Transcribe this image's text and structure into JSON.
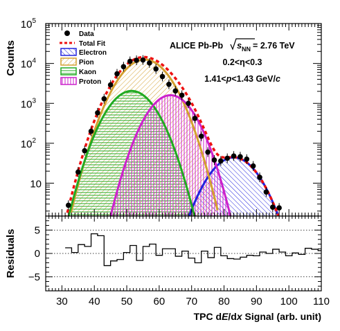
{
  "chart_data": [
    {
      "type": "line",
      "panel": "main",
      "ylabel": "Counts",
      "yscale": "log",
      "xlim": [
        25,
        110
      ],
      "ylim": [
        1.5,
        100000
      ],
      "y_tick_labels": [
        "10",
        "10",
        "10",
        "10",
        "10"
      ],
      "y_tick_exponents": [
        "5",
        "4",
        "3",
        "2",
        ""
      ],
      "annotation": {
        "title_prefix": "ALICE Pb-Pb",
        "sqrt": "s",
        "sqrt_sub": "NN",
        "title_suffix": "= 2.76 TeV",
        "line2_a": "0.2<",
        "line2_b": "η",
        "line2_c": "<0.3",
        "line3_a": "1.41<",
        "line3_b": "p",
        "line3_c": "<1.43 GeV/",
        "line3_d": "c"
      },
      "legend": [
        {
          "label": "Data",
          "style": "marker",
          "color": "#000000"
        },
        {
          "label": "Total Fit",
          "style": "dashed",
          "color": "#ee1111"
        },
        {
          "label": "Electron",
          "style": "hatch",
          "color": "#2222dd"
        },
        {
          "label": "Pion",
          "style": "hatch",
          "color": "#d4a030"
        },
        {
          "label": "Kaon",
          "style": "hatch",
          "color": "#22aa22"
        },
        {
          "label": "Proton",
          "style": "hatch",
          "color": "#cc22cc"
        }
      ],
      "components": [
        {
          "name": "Electron",
          "color": "#2222dd",
          "amp": 44,
          "mu": 83,
          "sigma": 5.3
        },
        {
          "name": "Pion",
          "color": "#d4a030",
          "amp": 12500,
          "mu": 55.5,
          "sigma": 5.4
        },
        {
          "name": "Kaon",
          "color": "#22aa22",
          "amp": 2050,
          "mu": 51.5,
          "sigma": 5.1
        },
        {
          "name": "Proton",
          "color": "#cc22cc",
          "amp": 1600,
          "mu": 63.5,
          "sigma": 4.95
        }
      ],
      "data_points": {
        "x": [
          32,
          35,
          37,
          39,
          41,
          43,
          45,
          47,
          49,
          51,
          53,
          55,
          57,
          59,
          61,
          63,
          65,
          67,
          69,
          71,
          73,
          75,
          77,
          79,
          81,
          83,
          85,
          87,
          89,
          91,
          93,
          95,
          97
        ],
        "y": [
          2.8,
          19,
          65,
          200,
          580,
          1300,
          2900,
          5500,
          8300,
          11300,
          12000,
          12200,
          10300,
          7300,
          4700,
          3000,
          2050,
          1600,
          1000,
          420,
          150,
          60,
          38,
          36,
          42,
          48,
          46,
          40,
          27,
          14,
          6,
          2.5,
          2.4
        ]
      }
    },
    {
      "type": "line",
      "panel": "residuals",
      "ylabel": "Residuals",
      "xlabel_a": "TPC d",
      "xlabel_b": "E",
      "xlabel_c": "/d",
      "xlabel_d": "x",
      "xlabel_e": " Signal (arb. unit)",
      "xlim": [
        25,
        110
      ],
      "ylim": [
        -8,
        8
      ],
      "x_ticks": [
        30,
        40,
        50,
        60,
        70,
        80,
        90,
        100,
        110
      ],
      "x_tick_labels": [
        "30",
        "40",
        "50",
        "60",
        "70",
        "80",
        "90",
        "100",
        "110"
      ],
      "y_ticks": [
        5,
        0,
        -5
      ],
      "y_tick_labels": [
        "5",
        "0",
        "−5"
      ],
      "reference_lines": [
        5,
        0,
        -5
      ],
      "bins_start": 32,
      "bin_width": 2,
      "values": [
        1.2,
        0.2,
        1.9,
        1.5,
        4.2,
        3.8,
        -2.6,
        -1.6,
        -1.3,
        0.2,
        1.7,
        -1.5,
        1.5,
        2.0,
        -0.4,
        1.0,
        1.0,
        -0.6,
        0.5,
        -1.0,
        -2.0,
        0.5,
        -0.9,
        1.3,
        -0.5,
        -1.1,
        -1.2,
        -0.8,
        -0.4,
        -0.5,
        0.3,
        0.0,
        0.9,
        0.3,
        -0.5,
        0.1,
        -0.2,
        1.1,
        0.9,
        0.6,
        0.8
      ]
    }
  ]
}
